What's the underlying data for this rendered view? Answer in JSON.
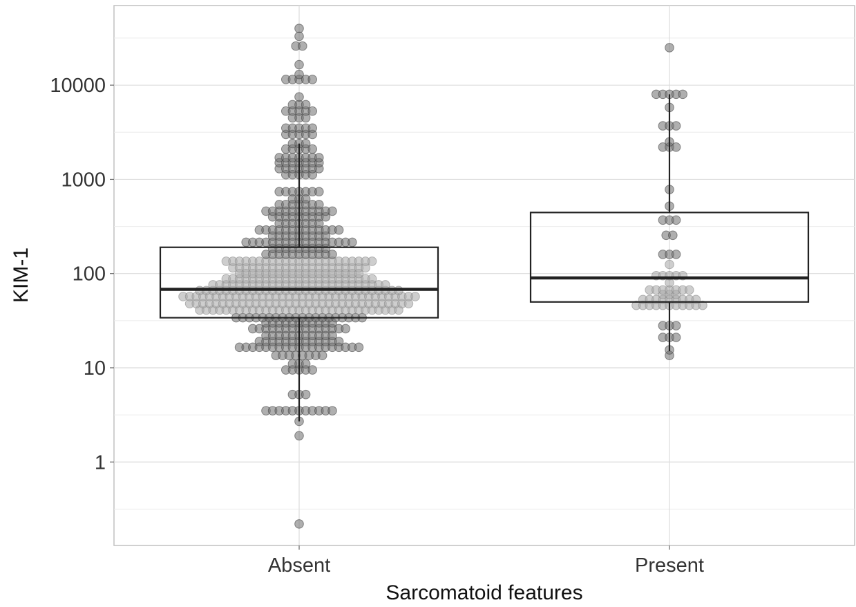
{
  "chart_data": {
    "type": "box",
    "title": "",
    "xlabel": "Sarcomatoid features",
    "ylabel": "KIM-1",
    "yscale": "log10",
    "ylim": [
      0.13,
      70000
    ],
    "yticks": [
      1,
      10,
      100,
      1000,
      10000
    ],
    "ytick_labels": [
      "1",
      "10",
      "100",
      "1000",
      "10000"
    ],
    "grid": true,
    "categories": [
      "Absent",
      "Present"
    ],
    "boxes": [
      {
        "category": "Absent",
        "q1": 34,
        "median": 68,
        "q3": 190,
        "whisker_low": 2.7,
        "whisker_high": 2400
      },
      {
        "category": "Present",
        "q1": 50,
        "median": 90,
        "q3": 445,
        "whisker_low": 15,
        "whisker_high": 8000
      }
    ],
    "points": [
      {
        "category": "Absent",
        "values": [
          0.22,
          1.9,
          2.7,
          3.5,
          3.5,
          3.5,
          3.5,
          3.5,
          3.5,
          3.5,
          3.5,
          3.5,
          3.5,
          3.5,
          5.2,
          5.2,
          5.2,
          9.5,
          9.5,
          9.5,
          9.5,
          9.5,
          11,
          11,
          11,
          13.5,
          13.5,
          13.5,
          13.5,
          13.5,
          13.5,
          13.5,
          13.5,
          16.5,
          16.5,
          16.5,
          16.5,
          16.5,
          16.5,
          16.5,
          16.5,
          16.5,
          16.5,
          16.5,
          16.5,
          16.5,
          16.5,
          16.5,
          16.5,
          16.5,
          16.5,
          16.5,
          19,
          19,
          19,
          19,
          19,
          19,
          19,
          19,
          19,
          19,
          19,
          19,
          19,
          22,
          22,
          22,
          22,
          22,
          22,
          22,
          22,
          22,
          22,
          22,
          26,
          26,
          26,
          26,
          26,
          26,
          26,
          26,
          26,
          26,
          26,
          26,
          26,
          26,
          26,
          30,
          30,
          30,
          30,
          30,
          30,
          30,
          30,
          30,
          30,
          30,
          34,
          34,
          34,
          34,
          34,
          34,
          34,
          34,
          34,
          34,
          34,
          34,
          34,
          34,
          34,
          34,
          34,
          34,
          34,
          34,
          41,
          41,
          41,
          41,
          41,
          41,
          41,
          41,
          41,
          41,
          41,
          41,
          41,
          41,
          41,
          41,
          41,
          41,
          41,
          41,
          41,
          41,
          41,
          41,
          41,
          41,
          41,
          41,
          41,
          41,
          41,
          48,
          48,
          48,
          48,
          48,
          48,
          48,
          48,
          48,
          48,
          48,
          48,
          48,
          48,
          48,
          48,
          48,
          48,
          48,
          48,
          48,
          48,
          48,
          48,
          48,
          48,
          48,
          48,
          48,
          48,
          48,
          48,
          48,
          48,
          57,
          57,
          57,
          57,
          57,
          57,
          57,
          57,
          57,
          57,
          57,
          57,
          57,
          57,
          57,
          57,
          57,
          57,
          57,
          57,
          57,
          57,
          57,
          57,
          57,
          57,
          57,
          57,
          57,
          57,
          57,
          57,
          57,
          57,
          57,
          57,
          66,
          66,
          66,
          66,
          66,
          66,
          66,
          66,
          66,
          66,
          66,
          66,
          66,
          66,
          66,
          66,
          66,
          66,
          66,
          66,
          66,
          66,
          66,
          66,
          66,
          66,
          66,
          66,
          66,
          66,
          66,
          76,
          76,
          76,
          76,
          76,
          76,
          76,
          76,
          76,
          76,
          76,
          76,
          76,
          76,
          76,
          76,
          76,
          76,
          76,
          76,
          76,
          76,
          76,
          76,
          76,
          76,
          76,
          88,
          88,
          88,
          88,
          88,
          88,
          88,
          88,
          88,
          88,
          88,
          88,
          88,
          88,
          88,
          88,
          88,
          88,
          88,
          88,
          88,
          88,
          88,
          100,
          100,
          100,
          100,
          100,
          100,
          100,
          100,
          100,
          100,
          100,
          100,
          100,
          100,
          100,
          100,
          100,
          100,
          100,
          115,
          115,
          115,
          115,
          115,
          115,
          115,
          115,
          115,
          115,
          115,
          115,
          115,
          115,
          115,
          115,
          115,
          115,
          115,
          115,
          115,
          135,
          135,
          135,
          135,
          135,
          135,
          135,
          135,
          135,
          135,
          135,
          135,
          135,
          135,
          135,
          135,
          135,
          135,
          135,
          135,
          135,
          135,
          135,
          160,
          160,
          160,
          160,
          160,
          160,
          160,
          160,
          160,
          160,
          160,
          185,
          185,
          185,
          185,
          185,
          185,
          185,
          185,
          185,
          215,
          215,
          215,
          215,
          215,
          215,
          215,
          215,
          215,
          215,
          215,
          215,
          215,
          215,
          215,
          215,
          215,
          250,
          250,
          250,
          250,
          250,
          250,
          250,
          250,
          250,
          290,
          290,
          290,
          290,
          290,
          290,
          290,
          290,
          290,
          290,
          290,
          290,
          290,
          340,
          340,
          340,
          340,
          340,
          340,
          340,
          400,
          400,
          400,
          400,
          400,
          400,
          400,
          400,
          400,
          460,
          460,
          460,
          460,
          460,
          460,
          460,
          460,
          460,
          460,
          460,
          540,
          540,
          540,
          540,
          540,
          540,
          540,
          620,
          620,
          620,
          740,
          740,
          740,
          740,
          740,
          740,
          740,
          1120,
          1120,
          1120,
          1120,
          1120,
          1300,
          1300,
          1300,
          1300,
          1300,
          1300,
          1300,
          1500,
          1500,
          1500,
          1500,
          1500,
          1500,
          1500,
          1700,
          1700,
          1700,
          1700,
          1700,
          1700,
          1700,
          2100,
          2100,
          2100,
          2100,
          2100,
          2400,
          2400,
          2400,
          3000,
          3000,
          3000,
          3000,
          3000,
          3500,
          3500,
          3500,
          3500,
          3500,
          4500,
          4500,
          4500,
          5300,
          5300,
          5300,
          5300,
          5300,
          6200,
          6200,
          6200,
          7500,
          11500,
          11500,
          11500,
          11500,
          11500,
          13000,
          16500,
          26000,
          26000,
          33000,
          40000
        ]
      },
      {
        "category": "Present",
        "values": [
          13.5,
          15.5,
          21,
          21,
          21,
          28,
          28,
          28,
          46,
          46,
          46,
          46,
          46,
          46,
          46,
          46,
          46,
          46,
          46,
          53,
          53,
          53,
          53,
          53,
          53,
          53,
          53,
          53,
          60,
          60,
          60,
          67,
          67,
          67,
          67,
          67,
          67,
          67,
          80,
          95,
          95,
          95,
          95,
          95,
          125,
          160,
          160,
          160,
          255,
          255,
          370,
          370,
          370,
          520,
          780,
          2200,
          2200,
          2200,
          2500,
          3700,
          3700,
          3700,
          5800,
          8000,
          8000,
          8000,
          8000,
          8000,
          25000
        ]
      }
    ]
  }
}
